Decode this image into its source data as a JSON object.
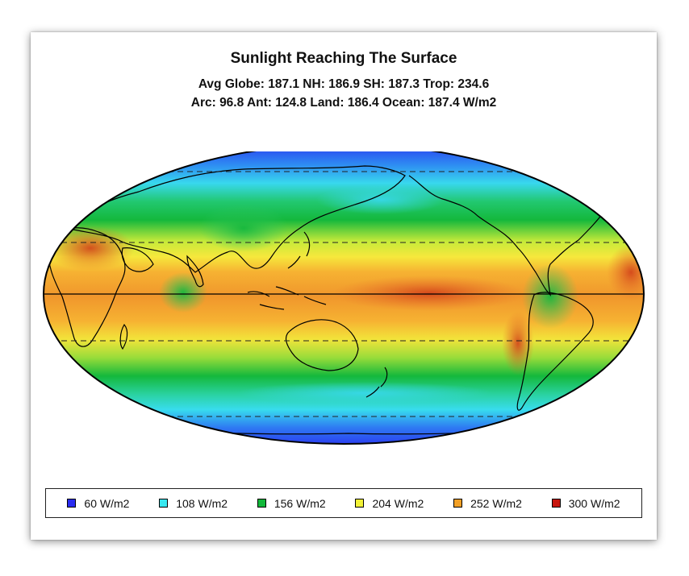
{
  "title": "Sunlight Reaching The Surface",
  "subtitle_line1": "Avg Globe: 187.1  NH: 186.9  SH: 187.3  Trop: 234.6",
  "subtitle_line2": "Arc: 96.8  Ant: 124.8  Land: 186.4 Ocean: 187.4 W/m2",
  "projection": "mollweide",
  "reference_lines": [
    "equator (solid)",
    "tropics (dashed)",
    "polar circles (dashed)"
  ],
  "legend": [
    {
      "label": "60 W/m2",
      "color": "#2a2cf0"
    },
    {
      "label": "108 W/m2",
      "color": "#38e8f0"
    },
    {
      "label": "156 W/m2",
      "color": "#12b83a"
    },
    {
      "label": "204 W/m2",
      "color": "#f2f236"
    },
    {
      "label": "252 W/m2",
      "color": "#f2a026"
    },
    {
      "label": "300 W/m2",
      "color": "#c8160e"
    }
  ]
}
